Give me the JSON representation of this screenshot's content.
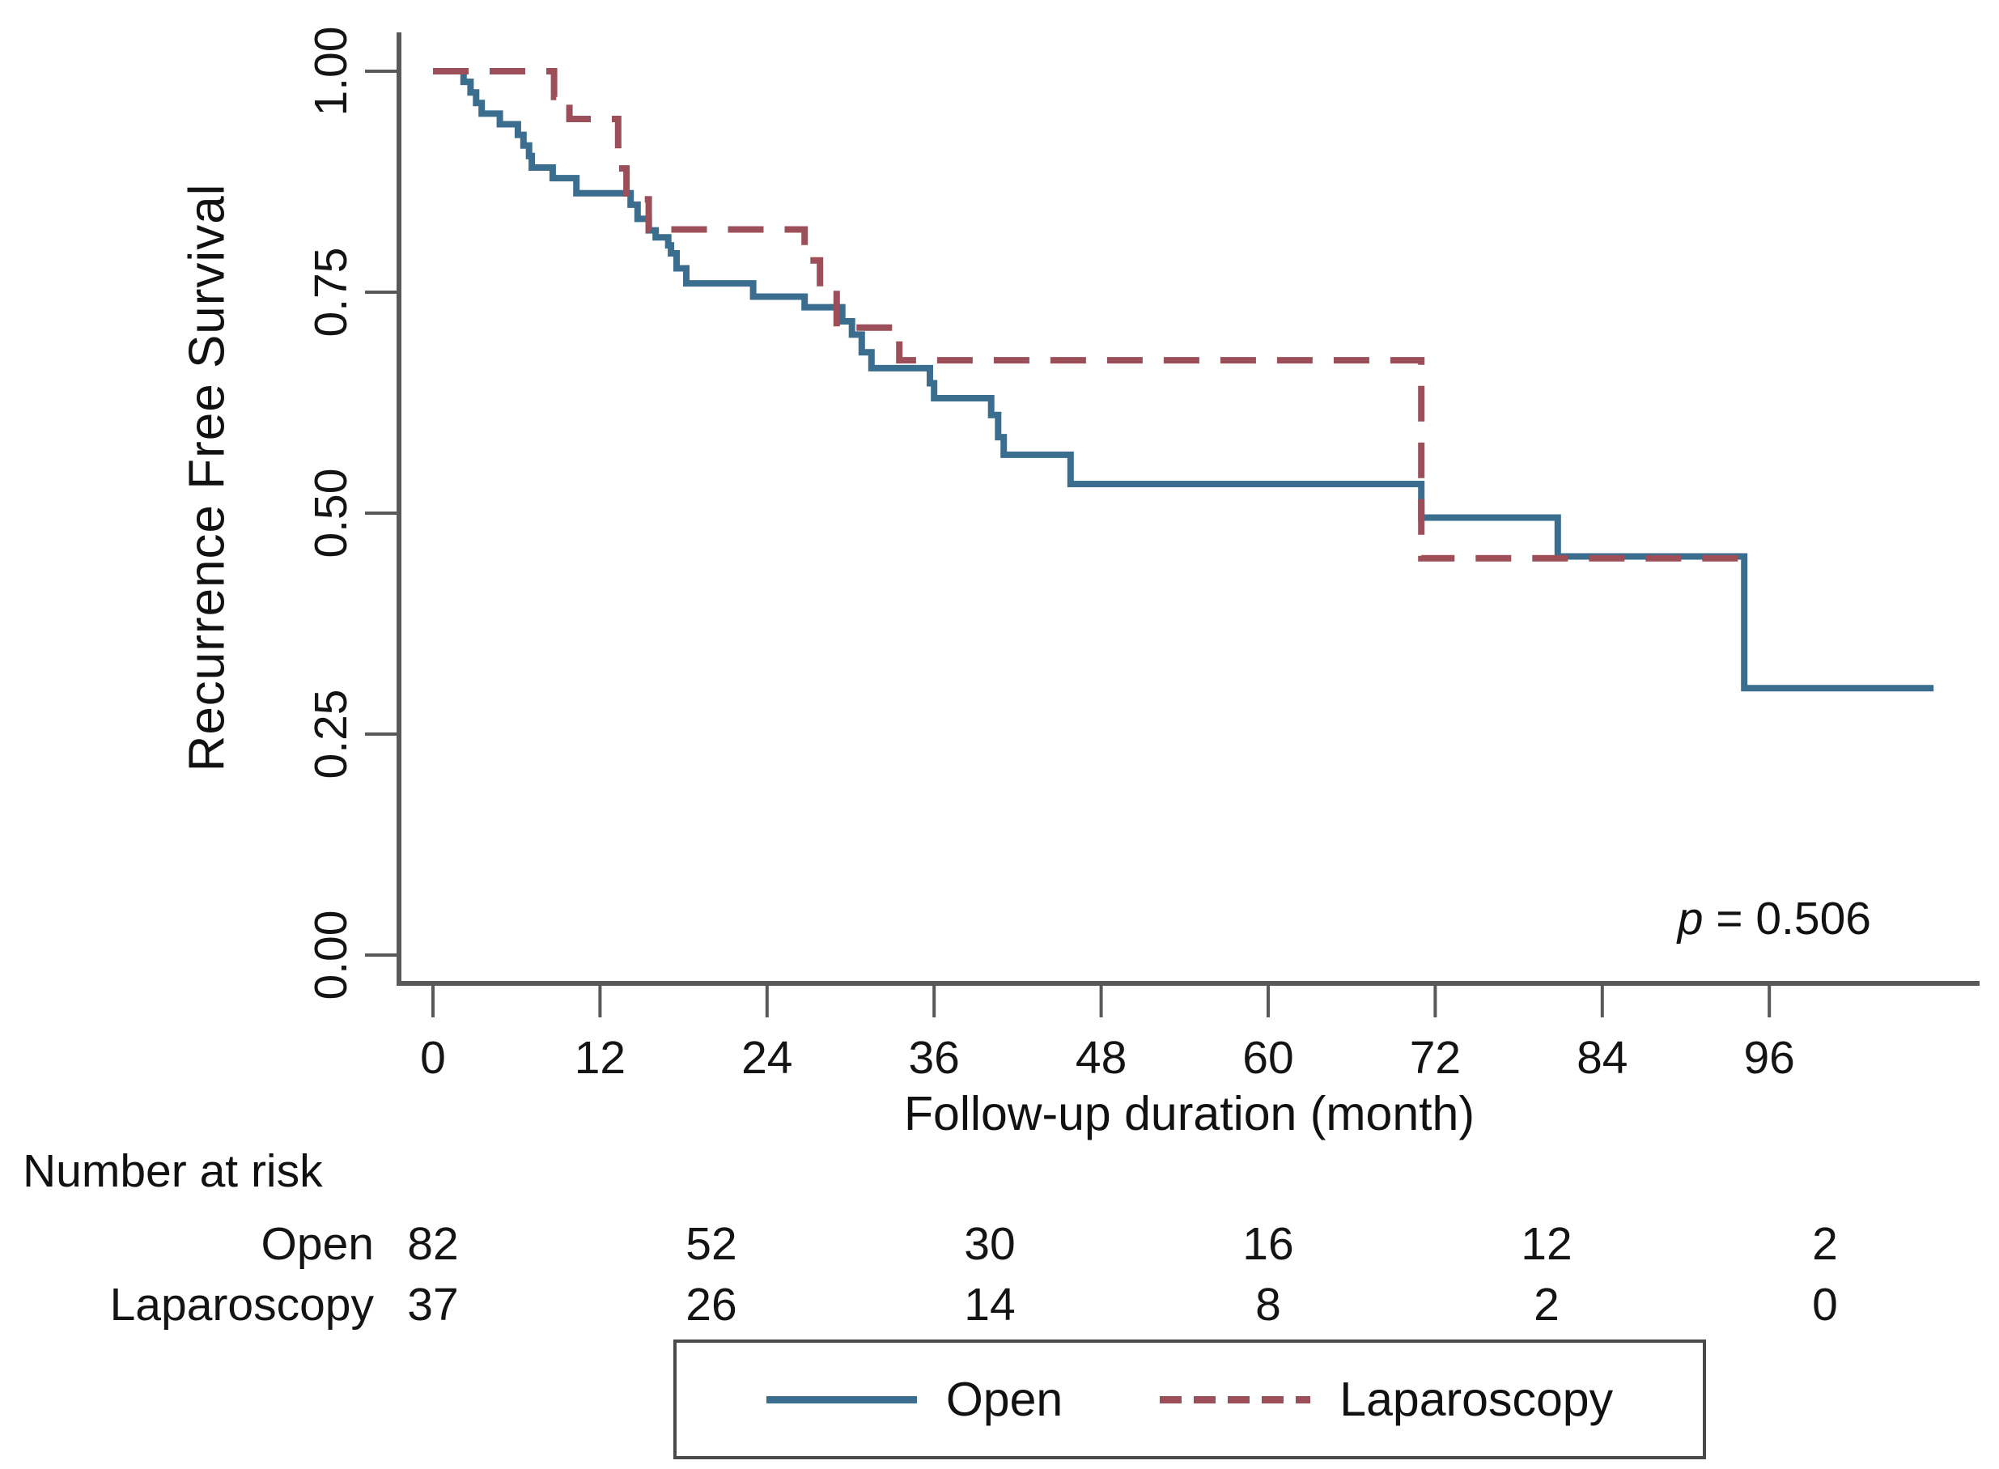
{
  "figure": {
    "background": "#ffffff",
    "axis_color": "#595959",
    "text_color": "#141414"
  },
  "annotation": {
    "prefix_italic": "p",
    "rest": " = 0.506"
  },
  "legend": {
    "items": [
      {
        "label": "Open",
        "style": "solid"
      },
      {
        "label": "Laparoscopy",
        "style": "dashed"
      }
    ]
  },
  "chart_data": {
    "type": "line",
    "subtype": "kaplan-meier-step",
    "title": "",
    "xlabel": "Follow-up duration (month)",
    "ylabel": "Recurrence Free Survival",
    "xlim": [
      0,
      111
    ],
    "ylim": [
      0.0,
      1.0
    ],
    "grid": false,
    "legend_position": "bottom",
    "x_ticks": [
      0,
      12,
      24,
      36,
      48,
      60,
      72,
      84,
      96
    ],
    "y_ticks": [
      {
        "value": 1.0,
        "label": "1.00"
      },
      {
        "value": 0.75,
        "label": "0.75"
      },
      {
        "value": 0.5,
        "label": "0.50"
      },
      {
        "value": 0.25,
        "label": "0.25"
      },
      {
        "value": 0.0,
        "label": "0.00"
      }
    ],
    "p_value": 0.506,
    "series": [
      {
        "name": "Open",
        "color": "#3a6d8e",
        "line_style": "solid",
        "n_start": 82,
        "end_time": 107.8,
        "steps": [
          [
            0,
            1.0
          ],
          [
            2.2,
            0.988
          ],
          [
            2.7,
            0.976
          ],
          [
            3.1,
            0.964
          ],
          [
            3.5,
            0.952
          ],
          [
            4.8,
            0.94
          ],
          [
            6.1,
            0.928
          ],
          [
            6.5,
            0.916
          ],
          [
            6.9,
            0.904
          ],
          [
            7.1,
            0.891
          ],
          [
            8.6,
            0.879
          ],
          [
            10.3,
            0.862
          ],
          [
            14.2,
            0.849
          ],
          [
            14.7,
            0.833
          ],
          [
            15.5,
            0.82
          ],
          [
            16.0,
            0.812
          ],
          [
            16.9,
            0.803
          ],
          [
            17.1,
            0.794
          ],
          [
            17.5,
            0.777
          ],
          [
            18.2,
            0.76
          ],
          [
            23.0,
            0.745
          ],
          [
            26.7,
            0.733
          ],
          [
            29.4,
            0.717
          ],
          [
            30.1,
            0.702
          ],
          [
            30.8,
            0.682
          ],
          [
            31.5,
            0.664
          ],
          [
            35.7,
            0.647
          ],
          [
            36.0,
            0.63
          ],
          [
            40.1,
            0.611
          ],
          [
            40.6,
            0.586
          ],
          [
            41.0,
            0.566
          ],
          [
            45.8,
            0.533
          ],
          [
            71.0,
            0.495
          ],
          [
            80.8,
            0.451
          ],
          [
            94.2,
            0.302
          ]
        ]
      },
      {
        "name": "Laparoscopy",
        "color": "#9c4f58",
        "line_style": "dashed",
        "n_start": 37,
        "end_time": 94.9,
        "steps": [
          [
            0,
            1.0
          ],
          [
            8.7,
            0.971
          ],
          [
            9.8,
            0.946
          ],
          [
            13.3,
            0.89
          ],
          [
            13.9,
            0.855
          ],
          [
            15.5,
            0.821
          ],
          [
            26.7,
            0.786
          ],
          [
            27.8,
            0.748
          ],
          [
            29.0,
            0.71
          ],
          [
            33.5,
            0.673
          ],
          [
            71.0,
            0.449
          ]
        ]
      }
    ],
    "risk_table": {
      "title": "Number at risk",
      "time_points": [
        0,
        20,
        40,
        60,
        80,
        100
      ],
      "rows": [
        {
          "label": "Open",
          "values": [
            82,
            52,
            30,
            16,
            12,
            2
          ]
        },
        {
          "label": "Laparoscopy",
          "values": [
            37,
            26,
            14,
            8,
            2,
            0
          ]
        }
      ]
    }
  }
}
